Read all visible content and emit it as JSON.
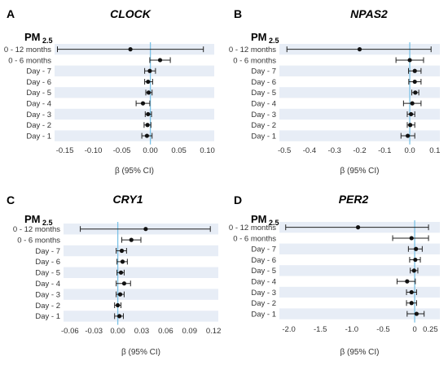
{
  "colors": {
    "band": "#e7edf6",
    "ref_line": "#7cc2e6",
    "marker": "#111111",
    "error_bar": "#222222"
  },
  "chart_data": [
    {
      "type": "forest",
      "panel": "A",
      "title": "CLOCK",
      "ylabel_main": "PM",
      "ylabel_sub": "2.5",
      "xlabel": "β (95% CI)",
      "categories": [
        "0 - 12 months",
        "0 - 6 months",
        "Day - 7",
        "Day - 6",
        "Day - 5",
        "Day - 4",
        "Day - 3",
        "Day - 2",
        "Day - 1"
      ],
      "estimate": [
        -0.035,
        0.017,
        -0.001,
        -0.004,
        -0.003,
        -0.013,
        -0.004,
        -0.005,
        -0.006
      ],
      "ci_low": [
        -0.163,
        -0.001,
        -0.01,
        -0.01,
        -0.008,
        -0.025,
        -0.009,
        -0.011,
        -0.015
      ],
      "ci_high": [
        0.093,
        0.035,
        0.009,
        0.004,
        0.003,
        -0.001,
        0.002,
        0.001,
        0.003
      ],
      "xlim": [
        -0.168,
        0.112
      ],
      "ticks": [
        -0.15,
        -0.1,
        -0.05,
        0.0,
        0.05,
        0.1
      ],
      "tick_labels": [
        "-0.15",
        "-0.10",
        "-0.05",
        "0.00",
        "0.05",
        "0.10"
      ],
      "ref_value": 0
    },
    {
      "type": "forest",
      "panel": "B",
      "title": "NPAS2",
      "ylabel_main": "PM",
      "ylabel_sub": "2.5",
      "xlabel": "β (95% CI)",
      "categories": [
        "0 - 12 months",
        "0 - 6 months",
        "Day - 7",
        "Day - 6",
        "Day - 5",
        "Day - 4",
        "Day - 3",
        "Day - 2",
        "Day - 1"
      ],
      "estimate": [
        -0.2,
        0.0,
        0.02,
        0.02,
        0.022,
        0.01,
        0.005,
        0.002,
        -0.008
      ],
      "ci_low": [
        -0.49,
        -0.055,
        -0.005,
        -0.004,
        0.008,
        -0.025,
        -0.01,
        -0.01,
        -0.035
      ],
      "ci_high": [
        0.085,
        0.055,
        0.045,
        0.045,
        0.036,
        0.045,
        0.02,
        0.02,
        0.02
      ],
      "xlim": [
        -0.52,
        0.12
      ],
      "ticks": [
        -0.5,
        -0.4,
        -0.3,
        -0.2,
        -0.1,
        0.0,
        0.1
      ],
      "tick_labels": [
        "-0.5",
        "-0.4",
        "-0.3",
        "-0.2",
        "-0.1",
        "0.0",
        "0.1"
      ],
      "ref_value": 0
    },
    {
      "type": "forest",
      "panel": "C",
      "title": "CRY1",
      "ylabel_main": "PM",
      "ylabel_sub": "2.5",
      "xlabel": "β (95% CI)",
      "categories": [
        "0 - 12 months",
        "0 - 6 months",
        "Day - 7",
        "Day - 6",
        "Day - 5",
        "Day - 4",
        "Day - 3",
        "Day - 2",
        "Day - 1"
      ],
      "estimate": [
        0.035,
        0.017,
        0.005,
        0.006,
        0.004,
        0.008,
        0.003,
        0.0,
        0.002
      ],
      "ci_low": [
        -0.047,
        0.005,
        -0.002,
        -0.001,
        -0.001,
        -0.002,
        -0.002,
        -0.004,
        -0.004
      ],
      "ci_high": [
        0.116,
        0.029,
        0.011,
        0.012,
        0.008,
        0.016,
        0.008,
        0.004,
        0.007
      ],
      "xlim": [
        -0.068,
        0.126
      ],
      "ticks": [
        -0.06,
        -0.03,
        0.0,
        0.03,
        0.06,
        0.09,
        0.12
      ],
      "tick_labels": [
        "-0.06",
        "-0.03",
        "0.00",
        "0.03",
        "0.06",
        "0.09",
        "0.12"
      ],
      "ref_value": 0
    },
    {
      "type": "forest",
      "panel": "D",
      "title": "PER2",
      "ylabel_main": "PM",
      "ylabel_sub": "2.5",
      "xlabel": "β (95% CI)",
      "categories": [
        "0 - 12 months",
        "0 - 6 months",
        "Day - 7",
        "Day - 6",
        "Day - 5",
        "Day - 4",
        "Day - 3",
        "Day - 2",
        "Day - 1"
      ],
      "estimate": [
        -0.9,
        -0.05,
        0.02,
        0.01,
        -0.01,
        -0.12,
        -0.05,
        -0.05,
        0.03
      ],
      "ci_low": [
        -2.05,
        -0.35,
        -0.1,
        -0.08,
        -0.07,
        -0.28,
        -0.13,
        -0.13,
        -0.12
      ],
      "ci_high": [
        0.22,
        0.22,
        0.12,
        0.09,
        0.05,
        0.01,
        0.03,
        0.03,
        0.15
      ],
      "xlim": [
        -2.15,
        0.4
      ],
      "ticks": [
        -2.0,
        -1.5,
        -1.0,
        -0.5,
        0.0,
        0.25
      ],
      "tick_labels": [
        "-2.0",
        "-1.5",
        "-1.0",
        "-0.5",
        "0",
        "0.25"
      ],
      "ref_value": 0
    }
  ]
}
